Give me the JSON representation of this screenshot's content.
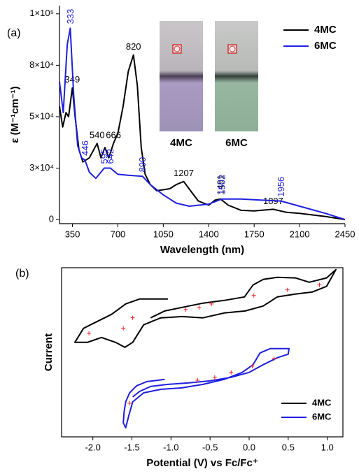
{
  "chart_data": [
    {
      "type": "line",
      "panel_label": "(a)",
      "xlabel": "Wavelength (nm)",
      "ylabel": "ε (M⁻¹cm⁻¹)",
      "xlim": [
        250,
        2450
      ],
      "xticks": [
        350,
        700,
        1050,
        1400,
        1750,
        2100,
        2450
      ],
      "ylim": [
        -2000,
        104000
      ],
      "yticks": [
        0,
        {
          "value": 25000,
          "label": "3×10⁴"
        },
        {
          "value": 50000,
          "label": "5×10⁴"
        },
        {
          "value": 75000,
          "label": "8×10⁴"
        },
        {
          "value": 100000,
          "label": "1×10⁵"
        }
      ],
      "legend": "upper right",
      "inset_labels": [
        "4MC",
        "6MC"
      ],
      "series": [
        {
          "name": "4MC",
          "color": "#000000",
          "x": [
            250,
            275,
            300,
            320,
            349,
            370,
            400,
            430,
            480,
            540,
            570,
            600,
            630,
            666,
            700,
            740,
            780,
            820,
            850,
            880,
            910,
            950,
            1000,
            1100,
            1150,
            1207,
            1260,
            1320,
            1400,
            1450,
            1491,
            1550,
            1650,
            1750,
            1897,
            2000,
            2100,
            2300,
            2450
          ],
          "values": [
            55000,
            45000,
            52000,
            50000,
            64000,
            50000,
            34000,
            28000,
            30000,
            37000,
            30000,
            35000,
            30000,
            37000,
            42000,
            55000,
            72000,
            80000,
            65000,
            35000,
            22000,
            17000,
            14000,
            15000,
            17000,
            18500,
            14000,
            9000,
            7000,
            9500,
            10000,
            7000,
            4500,
            4200,
            5000,
            3500,
            3000,
            1500,
            0
          ],
          "peak_labels": [
            "349",
            "540",
            "666",
            "820",
            "1207",
            "1897"
          ],
          "peak_labels_vertical": [
            "1491"
          ]
        },
        {
          "name": "6MC",
          "color": "#1f1fe0",
          "x": [
            250,
            279,
            310,
            333,
            360,
            390,
            420,
            446,
            480,
            530,
            595,
            642,
            700,
            780,
            890,
            950,
            1050,
            1150,
            1250,
            1400,
            1502,
            1650,
            1800,
            1956,
            2100,
            2300,
            2450
          ],
          "values": [
            67000,
            52000,
            85000,
            93000,
            60000,
            36000,
            30000,
            29000,
            23000,
            20000,
            25000,
            25000,
            22000,
            21500,
            21000,
            17000,
            12000,
            8000,
            6500,
            7500,
            10000,
            10000,
            9500,
            9000,
            6500,
            3000,
            0
          ],
          "peak_labels": [],
          "peak_labels_vertical": [
            "333",
            "446",
            "595",
            "642",
            "890",
            "1502",
            "1956"
          ]
        }
      ]
    },
    {
      "type": "line",
      "panel_label": "(b)",
      "xlabel": "Potential (V) vs Fc/Fc⁺",
      "ylabel": "Current",
      "xlim": [
        -2.4,
        1.2
      ],
      "xticks": [
        {
          "value": -2,
          "label": "-2.0"
        },
        -1.5,
        {
          "value": -1,
          "label": "-1.0"
        },
        -0.5,
        {
          "value": 0,
          "label": "0.0"
        },
        0.5,
        {
          "value": 1,
          "label": "1.0"
        }
      ],
      "ylim": [
        0,
        106
      ],
      "legend": "lower right",
      "series": [
        {
          "name": "4MC",
          "color": "#000000",
          "x": [
            -1.04,
            -1.4,
            -1.58,
            -1.76,
            -1.94,
            -2.12,
            -2.23,
            -2.07,
            -1.89,
            -1.71,
            -1.59,
            -1.49,
            -1.35,
            -1.13,
            -0.86,
            -0.59,
            -0.32,
            -0.05,
            0.18,
            0.36,
            0.59,
            0.81,
            0.99,
            1.11,
            0.99,
            0.77,
            0.59,
            0.36,
            0.18,
            0.05,
            -0.06,
            -0.32,
            -0.59,
            -0.86,
            -1.08,
            -1.26
          ],
          "values": [
            86.4,
            86.4,
            83.3,
            76.8,
            72.4,
            68.0,
            59.2,
            59.2,
            62.3,
            59.2,
            56.1,
            59.2,
            70.2,
            74.6,
            75.4,
            74.6,
            77.6,
            78.9,
            82.0,
            87.7,
            89.5,
            90.8,
            94.3,
            104.8,
            99.6,
            96.9,
            99.6,
            100,
            98.7,
            95.2,
            87.7,
            85.5,
            83.8,
            81.1,
            78.9,
            74.6
          ]
        },
        {
          "name": "6MC",
          "color": "#1f1fe0",
          "x": [
            -1.08,
            -1.31,
            -1.44,
            -1.53,
            -1.58,
            -1.6,
            -1.61,
            -1.58,
            -1.54,
            -1.49,
            -1.35,
            -1.13,
            -0.86,
            -0.59,
            -0.32,
            -0.09,
            0.05,
            0.14,
            0.27,
            0.51,
            0.5,
            0.36,
            0.18,
            0.0,
            -0.23,
            -0.5,
            -0.77,
            -1.04,
            -1.26,
            -1.4,
            -1.49
          ],
          "values": [
            36.0,
            34.6,
            32.0,
            27.6,
            21.9,
            15.4,
            8.8,
            5.7,
            13.2,
            21.9,
            27.6,
            29.8,
            30.7,
            32.9,
            36.0,
            40.4,
            45.2,
            52.6,
            55.3,
            55.3,
            51.8,
            49.6,
            45.2,
            40.4,
            37.3,
            35.1,
            33.8,
            32.9,
            31.6,
            28.5,
            25.0
          ]
        }
      ],
      "markers": {
        "color": "#ff2020",
        "x": [
          -2.05,
          -1.61,
          -1.49,
          -0.81,
          -0.64,
          -0.48,
          0.06,
          0.49,
          0.9,
          -1.53,
          -0.66,
          -0.44,
          -0.23,
          0.04,
          0.32
        ],
        "values": [
          64.9,
          68.0,
          74.6,
          79.8,
          81.1,
          83.3,
          88.6,
          92.1,
          95.2,
          21.1,
          35.5,
          37.3,
          40.4,
          44.3,
          49.1
        ]
      }
    }
  ]
}
